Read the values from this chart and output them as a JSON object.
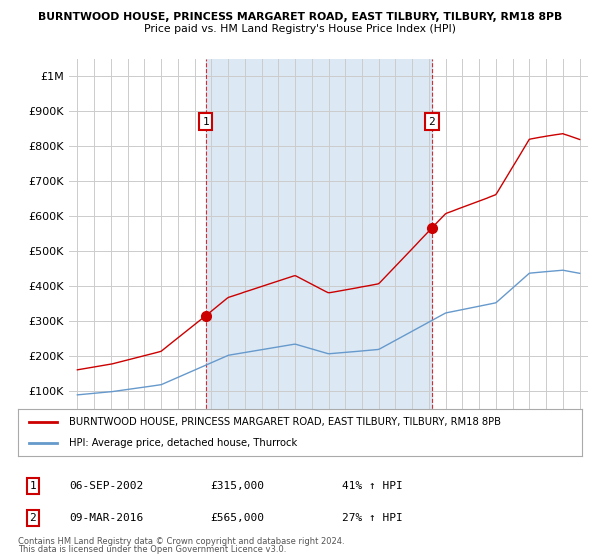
{
  "title1": "BURNTWOOD HOUSE, PRINCESS MARGARET ROAD, EAST TILBURY, TILBURY, RM18 8PB",
  "title2": "Price paid vs. HM Land Registry's House Price Index (HPI)",
  "sale1_date": "06-SEP-2002",
  "sale1_price": 315000,
  "sale1_hpi": "41% ↑ HPI",
  "sale1_label": "1",
  "sale2_date": "09-MAR-2016",
  "sale2_price": 565000,
  "sale2_hpi": "27% ↑ HPI",
  "sale2_label": "2",
  "legend_line1": "BURNTWOOD HOUSE, PRINCESS MARGARET ROAD, EAST TILBURY, TILBURY, RM18 8PB",
  "legend_line2": "HPI: Average price, detached house, Thurrock",
  "footer1": "Contains HM Land Registry data © Crown copyright and database right 2024.",
  "footer2": "This data is licensed under the Open Government Licence v3.0.",
  "line_color_red": "#cc0000",
  "line_color_blue": "#6699cc",
  "fill_color_blue": "#dce9f5",
  "vline_color": "#cc0000",
  "background_color": "#ffffff",
  "grid_color": "#cccccc",
  "ylim_min": 0,
  "ylim_max": 1050000,
  "sale1_x": 2002.67,
  "sale2_x": 2016.17
}
